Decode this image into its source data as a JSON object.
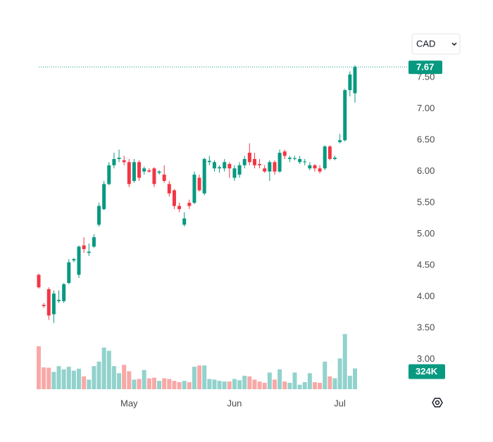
{
  "chart_data": {
    "type": "candlestick",
    "currency": "CAD",
    "categories": [
      null,
      null,
      null,
      null,
      null,
      null,
      null,
      null,
      null,
      null,
      null,
      null,
      null,
      null,
      null,
      null,
      null,
      null,
      "May",
      null,
      null,
      null,
      null,
      null,
      null,
      null,
      null,
      null,
      null,
      null,
      null,
      null,
      null,
      null,
      null,
      null,
      null,
      null,
      null,
      "Jun",
      null,
      null,
      null,
      null,
      null,
      null,
      null,
      null,
      null,
      null,
      null,
      null,
      null,
      null,
      null,
      null,
      null,
      null,
      null,
      null,
      "Jul",
      null,
      null,
      null
    ],
    "open": [
      4.35,
      3.87,
      4.12,
      3.72,
      3.93,
      3.93,
      4.22,
      4.58,
      4.35,
      4.82,
      4.7,
      4.8,
      5.15,
      5.4,
      5.8,
      6.1,
      6.2,
      6.18,
      6.15,
      5.85,
      6.15,
      6.0,
      6.02,
      6.05,
      5.98,
      5.95,
      5.8,
      5.7,
      5.45,
      5.15,
      5.5,
      5.5,
      5.9,
      5.65,
      6.15,
      6.05,
      6.05,
      6.05,
      6.12,
      5.9,
      5.95,
      6.1,
      6.3,
      6.2,
      6.12,
      6.05,
      6.0,
      6.15,
      6.0,
      6.32,
      6.2,
      6.2,
      6.15,
      6.15,
      6.05,
      6.1,
      6.05,
      6.05,
      6.4,
      6.2,
      6.47,
      6.5,
      7.3,
      7.25
    ],
    "high": [
      4.37,
      3.9,
      4.15,
      4.1,
      4.1,
      4.22,
      4.6,
      4.62,
      4.82,
      4.95,
      4.85,
      5.0,
      5.5,
      5.85,
      6.15,
      6.3,
      6.35,
      6.25,
      6.2,
      6.2,
      6.18,
      6.08,
      6.05,
      6.07,
      6.02,
      6.1,
      5.85,
      5.72,
      5.5,
      5.35,
      5.55,
      6.0,
      5.95,
      6.22,
      6.25,
      6.18,
      6.1,
      6.2,
      6.15,
      6.1,
      6.15,
      6.25,
      6.45,
      6.3,
      6.2,
      6.1,
      6.18,
      6.18,
      6.35,
      6.35,
      6.25,
      6.25,
      6.25,
      6.2,
      6.15,
      6.12,
      6.1,
      6.42,
      6.42,
      6.25,
      6.6,
      7.32,
      7.6,
      7.7
    ],
    "low": [
      4.13,
      3.82,
      3.63,
      3.58,
      3.9,
      3.9,
      4.2,
      4.55,
      4.3,
      4.7,
      4.65,
      4.78,
      5.12,
      5.38,
      5.78,
      6.05,
      6.15,
      6.1,
      5.75,
      5.82,
      5.85,
      5.95,
      5.98,
      5.75,
      5.95,
      5.82,
      5.6,
      5.4,
      5.35,
      5.12,
      5.4,
      5.48,
      5.68,
      5.62,
      6.1,
      6.0,
      5.98,
      6.0,
      5.9,
      5.85,
      5.9,
      6.05,
      6.1,
      6.05,
      6.05,
      5.98,
      5.85,
      5.95,
      5.98,
      6.2,
      6.15,
      6.18,
      6.12,
      6.1,
      6.02,
      6.0,
      5.97,
      6.02,
      6.18,
      6.18,
      6.45,
      6.48,
      7.2,
      7.1
    ],
    "close": [
      4.15,
      3.85,
      3.7,
      4.05,
      3.95,
      4.2,
      4.55,
      4.6,
      4.8,
      4.76,
      4.72,
      4.95,
      5.45,
      5.8,
      6.1,
      6.2,
      6.22,
      6.15,
      5.8,
      6.15,
      5.9,
      6.05,
      6.0,
      5.8,
      6.0,
      5.85,
      5.65,
      5.45,
      5.4,
      5.25,
      5.45,
      5.95,
      5.7,
      6.2,
      6.17,
      6.15,
      6.07,
      6.15,
      6.05,
      6.05,
      6.1,
      6.2,
      6.15,
      6.1,
      6.1,
      6.0,
      6.15,
      6.0,
      6.3,
      6.25,
      6.22,
      6.21,
      6.2,
      6.16,
      6.1,
      6.05,
      6.0,
      6.4,
      6.2,
      6.22,
      6.5,
      7.3,
      7.55,
      7.67
    ],
    "volume": [
      670000,
      340000,
      335000,
      270000,
      360000,
      310000,
      350000,
      290000,
      320000,
      200000,
      150000,
      360000,
      430000,
      650000,
      600000,
      360000,
      250000,
      380000,
      280000,
      150000,
      160000,
      300000,
      170000,
      180000,
      130000,
      170000,
      160000,
      130000,
      110000,
      130000,
      110000,
      350000,
      370000,
      370000,
      160000,
      150000,
      130000,
      120000,
      120000,
      160000,
      140000,
      210000,
      200000,
      150000,
      120000,
      100000,
      260000,
      150000,
      310000,
      120000,
      100000,
      260000,
      70000,
      110000,
      250000,
      110000,
      100000,
      430000,
      200000,
      170000,
      480000,
      860000,
      210000,
      324000
    ],
    "last_close_label": "7.67",
    "last_volume_label": "324K",
    "up_color": "#089981",
    "down_color": "#f23645",
    "volume_up_color": "#92d2cc",
    "volume_down_color": "#f7a9a7",
    "ylim": [
      2.41,
      8.29
    ],
    "yticks": [
      {
        "value": 3,
        "label": "3.00"
      },
      {
        "value": 3.5,
        "label": "3.50"
      },
      {
        "value": 4,
        "label": "4.00"
      },
      {
        "value": 4.5,
        "label": "4.50"
      },
      {
        "value": 5,
        "label": "5.00"
      },
      {
        "value": 5.5,
        "label": "5.50"
      },
      {
        "value": 6,
        "label": "6.00"
      },
      {
        "value": 6.5,
        "label": "6.50"
      },
      {
        "value": 7,
        "label": "7.00"
      },
      {
        "value": 7.5,
        "label": "7.50"
      }
    ],
    "volume_lim": [
      0,
      900000
    ]
  }
}
